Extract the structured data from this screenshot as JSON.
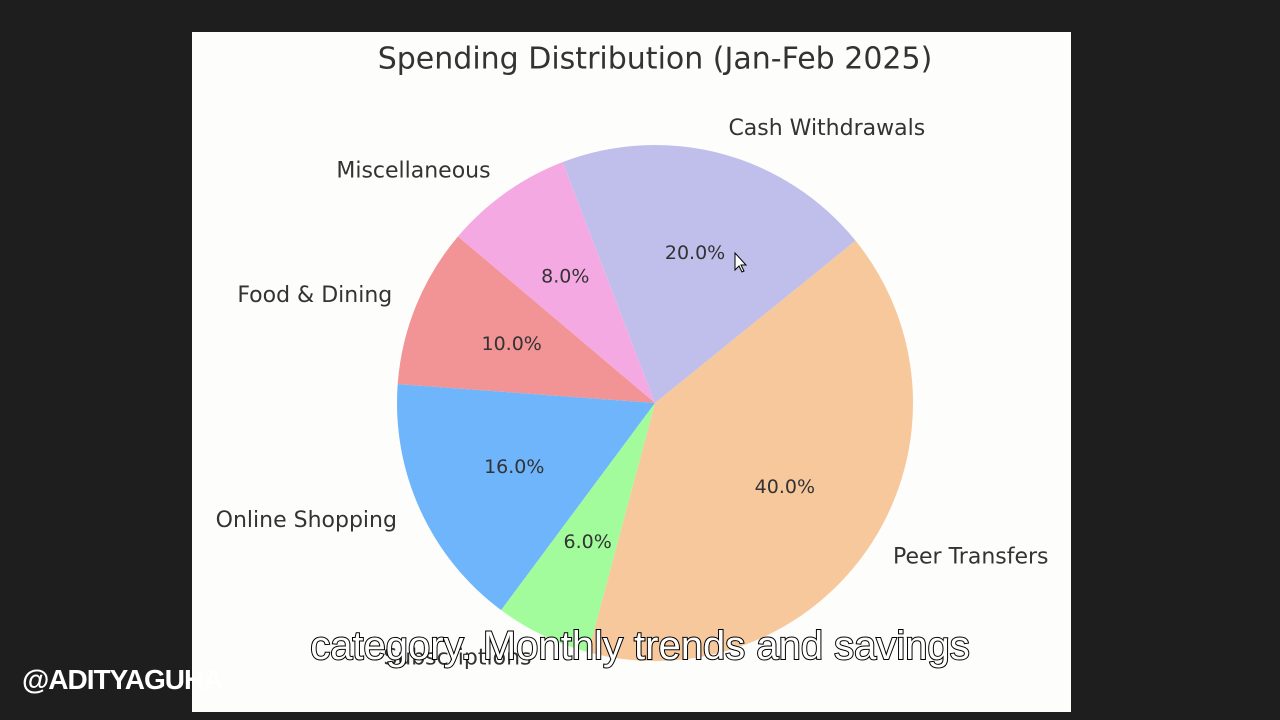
{
  "chart_data": {
    "type": "pie",
    "title": "Spending Distribution (Jan-Feb 2025)",
    "categories": [
      "Peer Transfers",
      "Cash Withdrawals",
      "Miscellaneous",
      "Food & Dining",
      "Online Shopping",
      "Subscriptions"
    ],
    "values": [
      40,
      20,
      8,
      10,
      16,
      6
    ],
    "value_labels": [
      "40.0%",
      "20.0%",
      "8.0%",
      "10.0%",
      "16.0%",
      "6.0%"
    ],
    "colors": [
      "#f7c89c",
      "#c0bfeb",
      "#f5a9e3",
      "#f29396",
      "#6eb5fb",
      "#a2fc9b"
    ],
    "startangle": -105,
    "counterclock": true
  },
  "caption": "category. Monthly trends and savings",
  "watermark": "@ADITYAGUHA"
}
